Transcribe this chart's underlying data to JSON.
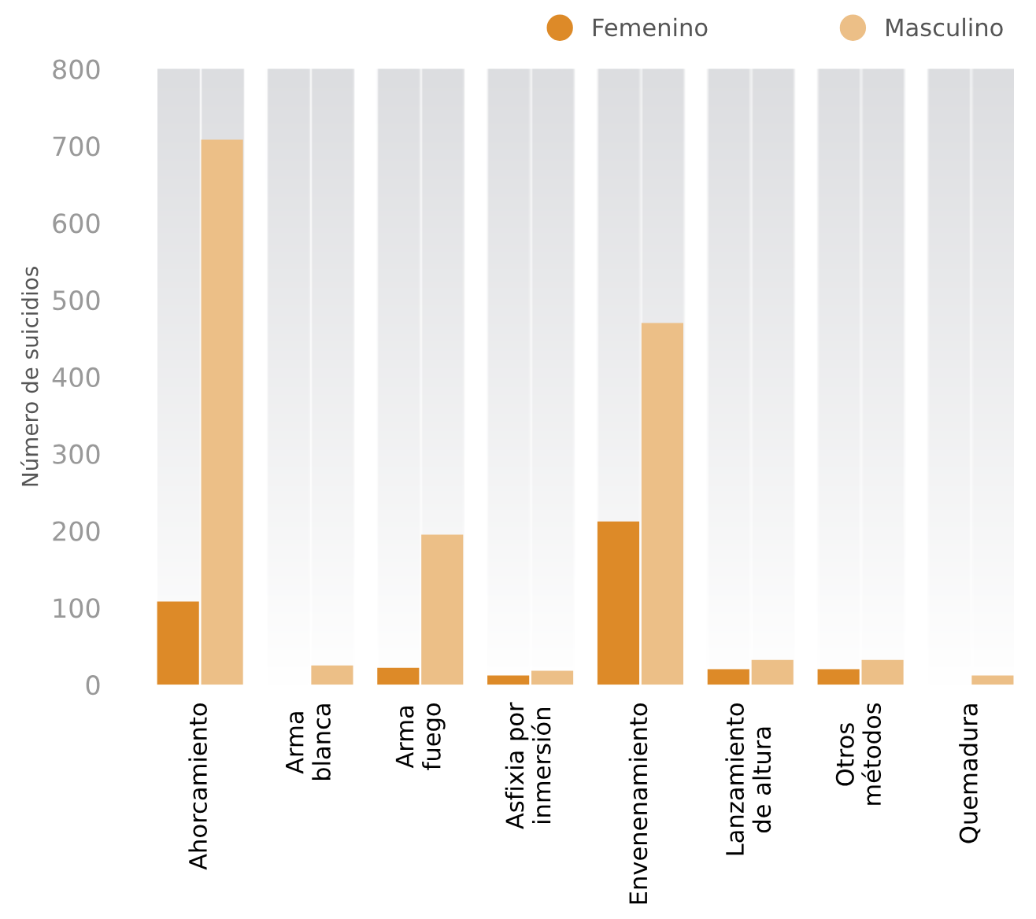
{
  "chart_data": {
    "type": "bar",
    "ylabel": "Número de suicidios",
    "categories": [
      "Ahorcamiento",
      "Arma\nblanca",
      "Arma\nfuego",
      "Asfixia por\ninmersión",
      "Envenenamiento",
      "Lanzamiento\nde altura",
      "Otros\nmétodos",
      "Quemadura"
    ],
    "series": [
      {
        "name": "Femenino",
        "color": "#dd8a28",
        "values": [
          108,
          0,
          22,
          12,
          212,
          20,
          20,
          0
        ]
      },
      {
        "name": "Masculino",
        "color": "#ecbf87",
        "values": [
          708,
          25,
          195,
          18,
          470,
          32,
          32,
          12
        ]
      }
    ],
    "ylim": [
      0,
      800
    ],
    "yticks": [
      0,
      100,
      200,
      300,
      400,
      500,
      600,
      700,
      800
    ],
    "grid": false,
    "legend": "top right"
  }
}
